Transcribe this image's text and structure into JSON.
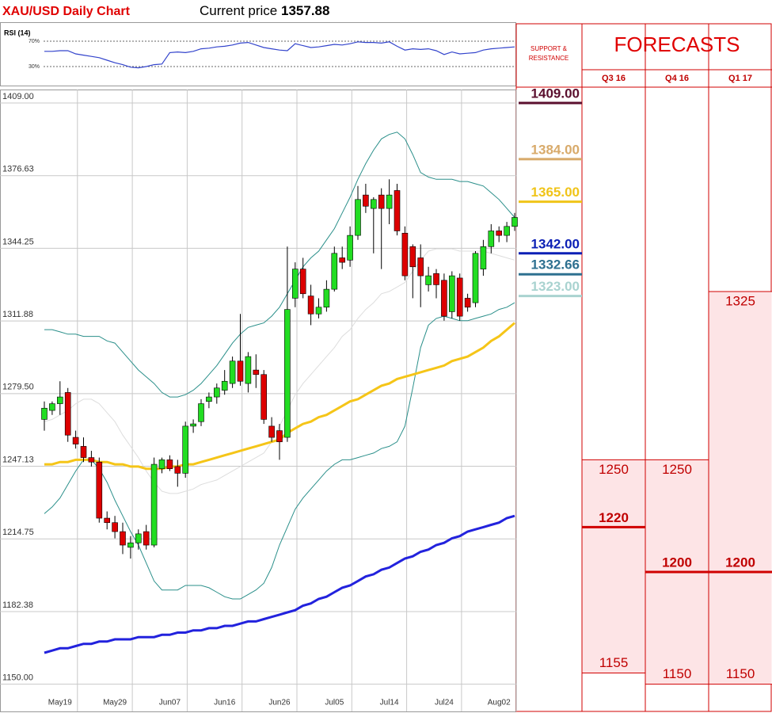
{
  "chart_data": [
    {
      "type": "candlestick",
      "title": "XAU/USD Daily Chart",
      "price_label": "Current price",
      "price": "1357.88",
      "categories": [
        null,
        null,
        "May19",
        null,
        null,
        null,
        null,
        null,
        null,
        "May29",
        null,
        null,
        null,
        null,
        null,
        null,
        "Jun07",
        null,
        null,
        null,
        null,
        null,
        null,
        "Jun16",
        null,
        null,
        null,
        null,
        null,
        null,
        "Jun26",
        null,
        null,
        null,
        null,
        null,
        null,
        "Jul05",
        null,
        null,
        null,
        null,
        null,
        null,
        "Jul14",
        null,
        null,
        null,
        null,
        null,
        null,
        "Jul24",
        null,
        null,
        null,
        null,
        null,
        null,
        "Aug02",
        null,
        null
      ],
      "open": [
        1268,
        1272,
        1275,
        1280,
        1260,
        1256,
        1251,
        1249,
        1224,
        1222,
        1218,
        1211,
        1213,
        1218,
        1212,
        1246,
        1250,
        1247,
        1244,
        1265,
        1267,
        1276,
        1278,
        1281,
        1284,
        1294,
        1284,
        1290,
        1288,
        1265,
        1263,
        1260,
        1322,
        1335,
        1323,
        1315,
        1318,
        1326,
        1340,
        1339,
        1350,
        1368,
        1362,
        1368,
        1362,
        1370,
        1351,
        1345,
        1340,
        1328,
        1333,
        1330,
        1316,
        1331,
        1322,
        1320,
        1335,
        1345,
        1352,
        1350,
        1354
      ],
      "high": [
        1276,
        1276,
        1285,
        1282,
        1263,
        1260,
        1254,
        1251,
        1227,
        1225,
        1222,
        1216,
        1219,
        1221,
        1251,
        1251,
        1252,
        1250,
        1267,
        1268,
        1277,
        1280,
        1284,
        1290,
        1296,
        1315,
        1298,
        1297,
        1290,
        1269,
        1266,
        1345,
        1338,
        1340,
        1328,
        1322,
        1330,
        1345,
        1345,
        1354,
        1372,
        1373,
        1367,
        1371,
        1375,
        1373,
        1354,
        1346,
        1346,
        1336,
        1335,
        1333,
        1334,
        1333,
        1324,
        1343,
        1348,
        1355,
        1354,
        1356,
        1360
      ],
      "low": [
        1263,
        1270,
        1270,
        1258,
        1255,
        1249,
        1247,
        1222,
        1219,
        1215,
        1208,
        1206,
        1210,
        1210,
        1211,
        1244,
        1245,
        1238,
        1242,
        1262,
        1265,
        1273,
        1275,
        1279,
        1282,
        1283,
        1280,
        1282,
        1266,
        1258,
        1250,
        1258,
        1318,
        1322,
        1310,
        1313,
        1316,
        1325,
        1335,
        1336,
        1348,
        1360,
        1342,
        1335,
        1355,
        1350,
        1330,
        1322,
        1318,
        1325,
        1322,
        1312,
        1313,
        1312,
        1316,
        1318,
        1332,
        1342,
        1347,
        1347,
        1352
      ],
      "close": [
        1273,
        1275,
        1278,
        1261,
        1257,
        1251,
        1249,
        1224,
        1222,
        1218,
        1212,
        1213,
        1217,
        1212,
        1248,
        1250,
        1246,
        1244,
        1265,
        1266,
        1275,
        1278,
        1282,
        1285,
        1294,
        1285,
        1296,
        1288,
        1268,
        1260,
        1258,
        1317,
        1335,
        1324,
        1315,
        1318,
        1326,
        1342,
        1338,
        1350,
        1366,
        1363,
        1366,
        1362,
        1368,
        1352,
        1332,
        1336,
        1332,
        1332,
        1328,
        1314,
        1332,
        1314,
        1318,
        1342,
        1345,
        1352,
        1350,
        1354,
        1358
      ],
      "up_color": "#22dd22",
      "down_color": "#dd0000",
      "overlays": [
        {
          "color": "#dddddd",
          "width": 1,
          "values": [
            1267,
            1268,
            1270,
            1272,
            1275,
            1277,
            1277,
            1275,
            1271,
            1267,
            1261,
            1256,
            1251,
            1245,
            1240,
            1236,
            1235,
            1235,
            1236,
            1237,
            1239,
            1240,
            1241,
            1243,
            1245,
            1247,
            1249,
            1251,
            1253,
            1258,
            1265,
            1272,
            1279,
            1284,
            1288,
            1292,
            1296,
            1300,
            1305,
            1308,
            1313,
            1317,
            1320,
            1324,
            1325,
            1327,
            1329,
            1334,
            1339,
            1343,
            1344,
            1344,
            1344,
            1343,
            1343,
            1343,
            1343,
            1342,
            1341,
            1340,
            1339
          ]
        },
        {
          "color": "#2a8f8a",
          "width": 1,
          "values": [
            1308,
            1308,
            1307,
            1306,
            1306,
            1305,
            1305,
            1305,
            1303,
            1302,
            1298,
            1294,
            1290,
            1287,
            1284,
            1280,
            1278,
            1278,
            1279,
            1281,
            1284,
            1288,
            1292,
            1297,
            1302,
            1306,
            1309,
            1310,
            1311,
            1314,
            1318,
            1324,
            1330,
            1336,
            1340,
            1343,
            1348,
            1353,
            1360,
            1367,
            1375,
            1382,
            1388,
            1393,
            1395,
            1396,
            1393,
            1386,
            1378,
            1376,
            1375,
            1375,
            1375,
            1374,
            1374,
            1373,
            1372,
            1369,
            1366,
            1362,
            1358
          ]
        },
        {
          "color": "#2a8f8a",
          "width": 1,
          "values": [
            1226,
            1229,
            1233,
            1239,
            1245,
            1250,
            1250,
            1246,
            1240,
            1232,
            1225,
            1218,
            1212,
            1204,
            1196,
            1192,
            1192,
            1192,
            1194,
            1194,
            1194,
            1193,
            1191,
            1189,
            1188,
            1188,
            1190,
            1192,
            1195,
            1202,
            1212,
            1220,
            1228,
            1233,
            1237,
            1241,
            1245,
            1248,
            1250,
            1250,
            1251,
            1252,
            1253,
            1255,
            1256,
            1258,
            1265,
            1282,
            1300,
            1310,
            1313,
            1314,
            1313,
            1312,
            1312,
            1313,
            1314,
            1315,
            1317,
            1318,
            1320
          ]
        },
        {
          "color": "#f5c518",
          "width": 3,
          "values": [
            1248,
            1248,
            1249,
            1249,
            1250,
            1250,
            1250,
            1249,
            1249,
            1248,
            1248,
            1247,
            1247,
            1246,
            1246,
            1246,
            1247,
            1247,
            1248,
            1248,
            1249,
            1250,
            1251,
            1252,
            1253,
            1254,
            1255,
            1256,
            1257,
            1258,
            1259,
            1262,
            1264,
            1266,
            1267,
            1269,
            1270,
            1272,
            1274,
            1276,
            1277,
            1279,
            1281,
            1283,
            1284,
            1286,
            1287,
            1288,
            1289,
            1290,
            1291,
            1292,
            1294,
            1295,
            1296,
            1298,
            1300,
            1303,
            1305,
            1308,
            1311
          ]
        },
        {
          "color": "#2222dd",
          "width": 3,
          "values": [
            1164,
            1165,
            1166,
            1166,
            1167,
            1168,
            1168,
            1169,
            1169,
            1170,
            1170,
            1170,
            1171,
            1171,
            1171,
            1172,
            1172,
            1173,
            1173,
            1174,
            1174,
            1175,
            1175,
            1176,
            1176,
            1177,
            1178,
            1178,
            1179,
            1180,
            1181,
            1182,
            1183,
            1185,
            1186,
            1188,
            1189,
            1191,
            1193,
            1194,
            1196,
            1198,
            1199,
            1201,
            1202,
            1204,
            1206,
            1207,
            1209,
            1210,
            1212,
            1213,
            1215,
            1216,
            1218,
            1219,
            1220,
            1221,
            1222,
            1224,
            1225
          ]
        }
      ],
      "ylim": [
        1146,
        1415
      ],
      "yticks": [
        {
          "value": 1150,
          "label": "1150.00"
        },
        {
          "value": 1182.375,
          "label": "1182.38"
        },
        {
          "value": 1214.75,
          "label": "1214.75"
        },
        {
          "value": 1247.125,
          "label": "1247.13"
        },
        {
          "value": 1279.5,
          "label": "1279.50"
        },
        {
          "value": 1311.875,
          "label": "1311.88"
        },
        {
          "value": 1344.25,
          "label": "1344.25"
        },
        {
          "value": 1376.625,
          "label": "1376.63"
        },
        {
          "value": 1409,
          "label": "1409.00"
        }
      ],
      "grid": true
    },
    {
      "type": "line",
      "title": "RSI (14)",
      "color": "#3344cc",
      "values": [
        54,
        54,
        55,
        55,
        50,
        48,
        46,
        44,
        40,
        36,
        33,
        29,
        28,
        30,
        33,
        34,
        52,
        53,
        52,
        54,
        58,
        59,
        61,
        62,
        64,
        67,
        68,
        64,
        60,
        58,
        56,
        55,
        66,
        63,
        60,
        61,
        63,
        65,
        64,
        66,
        69,
        68,
        68,
        67,
        69,
        62,
        56,
        58,
        57,
        58,
        55,
        49,
        53,
        50,
        51,
        52,
        56,
        58,
        59,
        60,
        61
      ],
      "ylim": [
        0,
        100
      ],
      "yticks": [
        {
          "value": 30,
          "label": "30%"
        },
        {
          "value": 70,
          "label": "70%"
        }
      ]
    }
  ],
  "forecast_table": {
    "support_title": [
      "SUPPORT &",
      "RESISTANCE"
    ],
    "title": "FORECASTS",
    "columns": [
      "Q3 16",
      "Q4 16",
      "Q1 17"
    ],
    "support_levels": [
      {
        "value": 1409,
        "label": "1409.00",
        "color": "#5b0f2e"
      },
      {
        "value": 1384,
        "label": "1384.00",
        "color": "#d8aa6a"
      },
      {
        "value": 1365,
        "label": "1365.00",
        "color": "#f0c419"
      },
      {
        "value": 1342,
        "label": "1342.00",
        "color": "#0b1fb5"
      },
      {
        "value": 1332.66,
        "label": "1332.66",
        "color": "#2e7090"
      },
      {
        "value": 1323,
        "label": "1323.00",
        "color": "#a9d3d0"
      }
    ],
    "forecasts": [
      {
        "high": 1250,
        "mid": 1220,
        "low": 1155
      },
      {
        "high": 1250,
        "mid": 1200,
        "low": 1150
      },
      {
        "high": 1325,
        "mid": 1200,
        "low": 1150
      }
    ]
  }
}
